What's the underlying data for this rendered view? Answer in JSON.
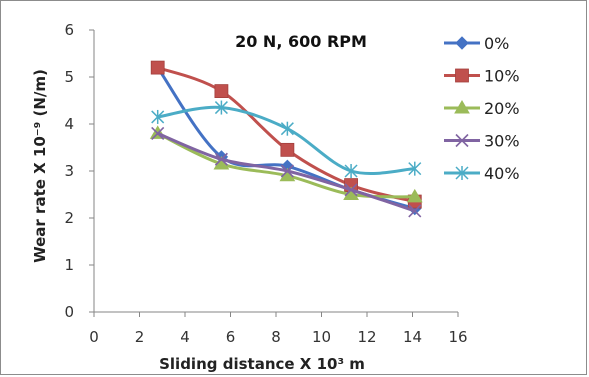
{
  "chart_data": {
    "type": "line",
    "title": "20 N, 600 RPM",
    "xlabel": "Sliding distance X 10³ m",
    "ylabel": "Wear rate X 10⁻⁹ (N/m)",
    "xlim": [
      0,
      16
    ],
    "ylim": [
      0,
      6
    ],
    "xticks": [
      "0",
      "2",
      "4",
      "6",
      "8",
      "10",
      "12",
      "14",
      "16"
    ],
    "yticks": [
      "0",
      "1",
      "2",
      "3",
      "4",
      "5",
      "6"
    ],
    "grid": false,
    "legend_position": "right",
    "series": [
      {
        "name": "0%",
        "color": "#4472c4",
        "marker": "diamond",
        "x": [
          2.8,
          5.6,
          8.5,
          11.3,
          14.1
        ],
        "y": [
          5.2,
          3.3,
          3.1,
          2.6,
          2.2
        ]
      },
      {
        "name": "10%",
        "color": "#c0504d",
        "marker": "square",
        "x": [
          2.8,
          5.6,
          8.5,
          11.3,
          14.1
        ],
        "y": [
          5.2,
          4.7,
          3.45,
          2.7,
          2.35
        ]
      },
      {
        "name": "20%",
        "color": "#9bbb59",
        "marker": "triangle",
        "x": [
          2.8,
          5.6,
          8.5,
          11.3,
          14.1
        ],
        "y": [
          3.8,
          3.15,
          2.9,
          2.5,
          2.45
        ]
      },
      {
        "name": "30%",
        "color": "#8064a2",
        "marker": "x",
        "x": [
          2.8,
          5.6,
          8.5,
          11.3,
          14.1
        ],
        "y": [
          3.8,
          3.25,
          3.0,
          2.6,
          2.15
        ]
      },
      {
        "name": "40%",
        "color": "#4bacc6",
        "marker": "star",
        "x": [
          2.8,
          5.6,
          8.5,
          11.3,
          14.1
        ],
        "y": [
          4.15,
          4.35,
          3.9,
          3.0,
          3.05
        ]
      }
    ]
  }
}
